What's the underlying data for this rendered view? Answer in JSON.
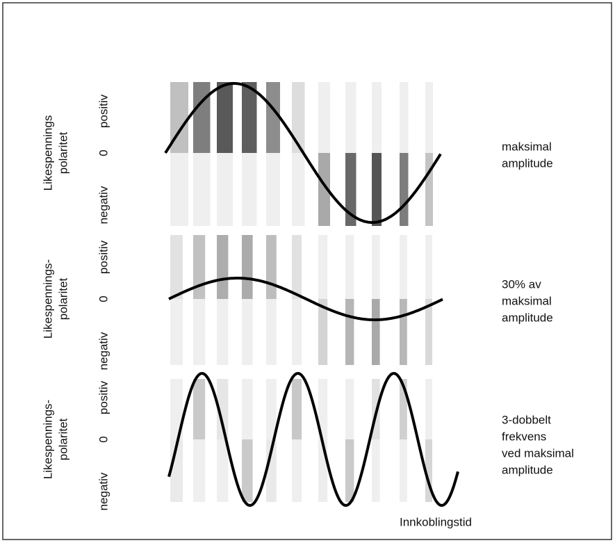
{
  "panels": [
    {
      "ylabel": [
        "Likespennings",
        "polaritet"
      ],
      "axis": [
        "negativ",
        "0",
        "positiv"
      ],
      "note": [
        "maksimal",
        "amplitude"
      ]
    },
    {
      "ylabel": [
        "Likespennings-",
        "polaritet"
      ],
      "axis": [
        "negativ",
        "0",
        "positiv"
      ],
      "note": [
        "30% av",
        "maksimal",
        "amplitude"
      ]
    },
    {
      "ylabel": [
        "Likespennings-",
        "polaritet"
      ],
      "axis": [
        "negativ",
        "0",
        "positiv"
      ],
      "note": [
        "3-dobbelt",
        "frekvens",
        "ved maksimal",
        "amplitude"
      ]
    }
  ],
  "xlabel": "Innkoblingstid"
}
